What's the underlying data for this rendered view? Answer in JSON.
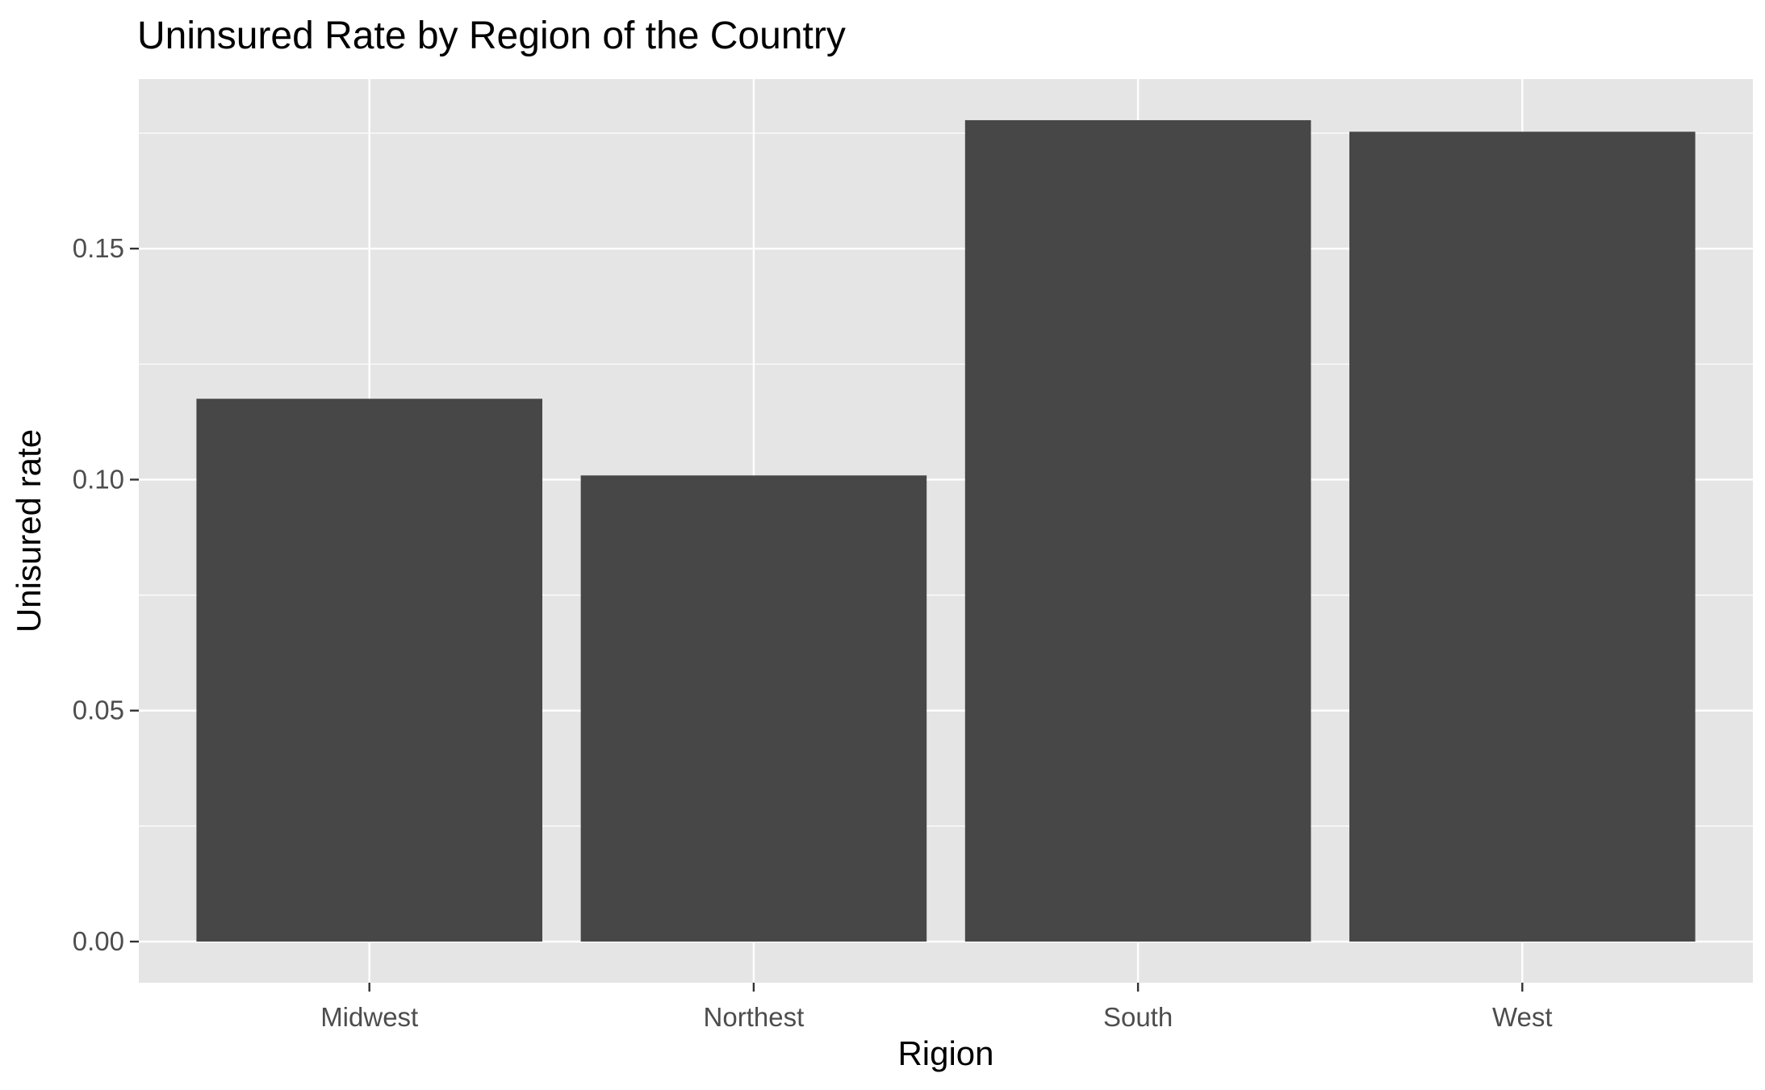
{
  "chart_data": {
    "type": "bar",
    "title": "Uninsured Rate by Region of the Country",
    "xlabel": "Rigion",
    "ylabel": "Unisured rate",
    "categories": [
      "Midwest",
      "Northest",
      "South",
      "West"
    ],
    "values": [
      0.1175,
      0.1009,
      0.1778,
      0.1753
    ],
    "ylim": [
      -0.0089,
      0.1867
    ],
    "yticks": [
      "0.00",
      "0.05",
      "0.10",
      "0.15"
    ],
    "ytick_values": [
      0.0,
      0.05,
      0.1,
      0.15
    ],
    "grid": true,
    "legend": "none",
    "colors": {
      "bar": "#474747",
      "panel_background": "#e5e5e5",
      "grid": "#ffffff",
      "tick_text": "#4d4d4d",
      "tick_mark": "#333333"
    }
  }
}
